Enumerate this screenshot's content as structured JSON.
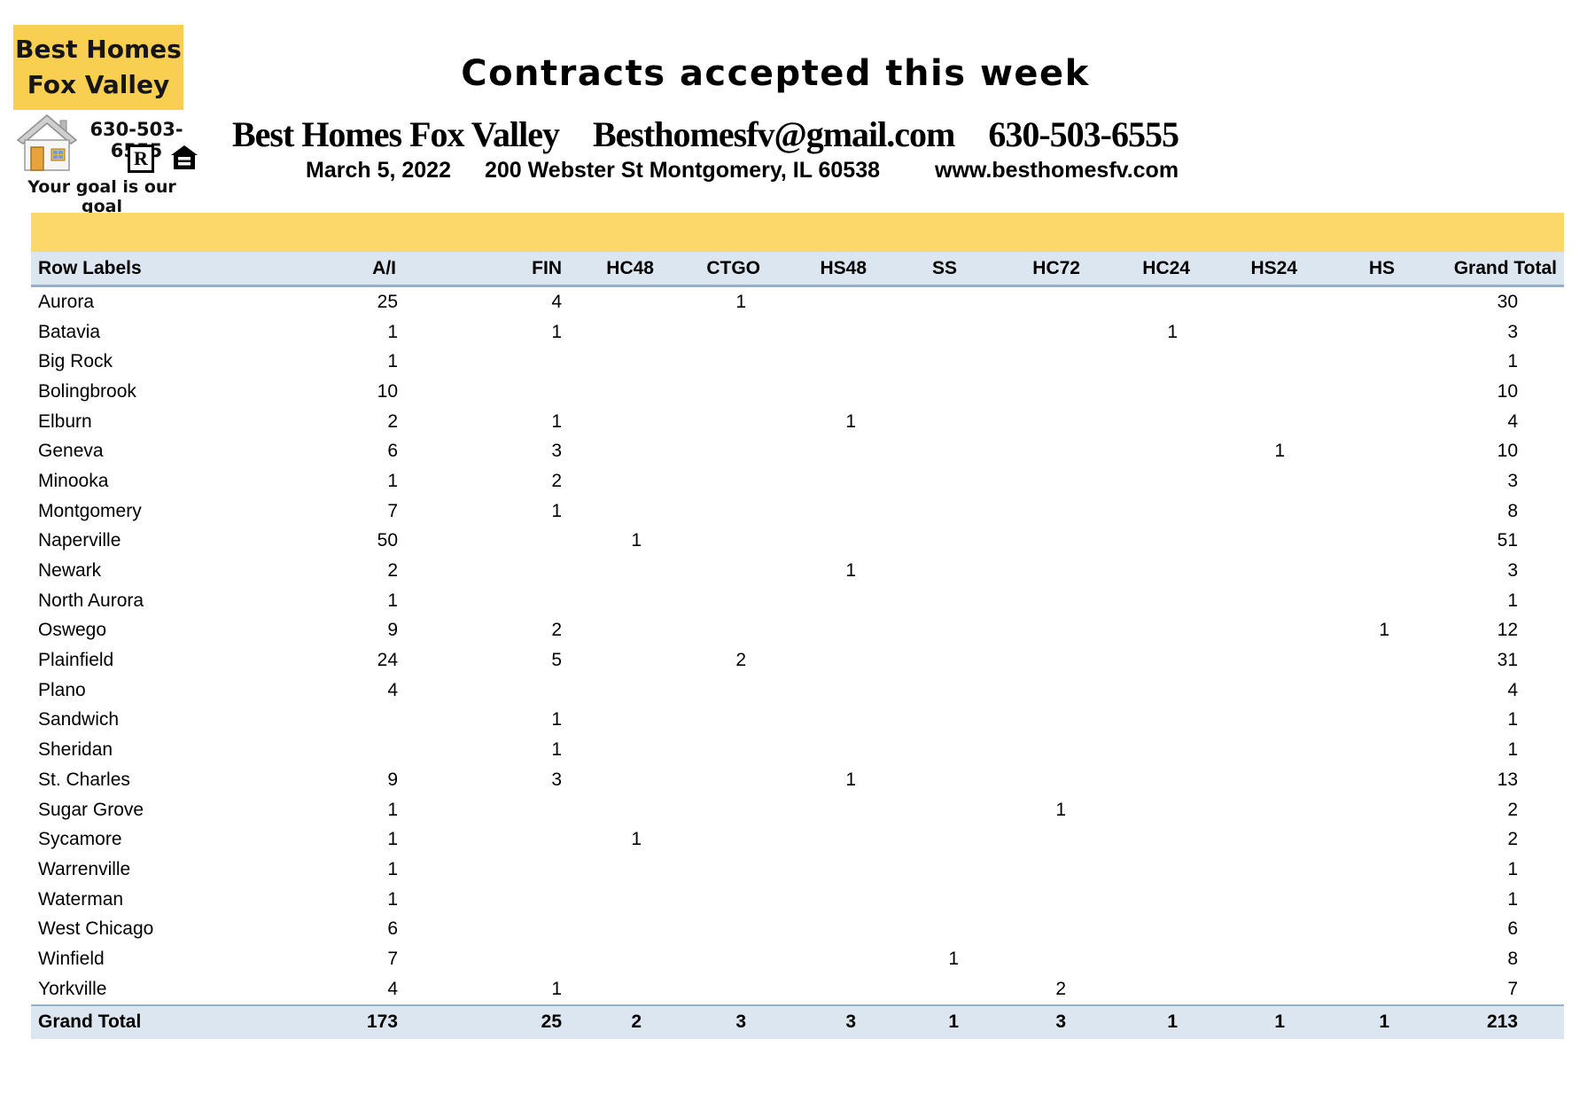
{
  "logo": {
    "line1": "Best Homes",
    "line2": "Fox Valley",
    "phone": "630-503-6555",
    "tagline": "Your goal is our goal",
    "icons": [
      "house-icon",
      "realtor-icon",
      "equal-housing-icon"
    ]
  },
  "header": {
    "title": "Contracts accepted this week",
    "company": "Best Homes Fox Valley",
    "email": "Besthomesfv@gmail.com",
    "phone": "630-503-6555",
    "date": "March 5, 2022",
    "address": "200 Webster St Montgomery, IL 60538",
    "website": "www.besthomesfv.com"
  },
  "colors": {
    "logo_yellow": "#F9CF52",
    "band_yellow": "#FBD869",
    "header_blue": "#DCE6F1",
    "border_blue": "#95AFC9"
  },
  "table": {
    "columns": [
      "Row Labels",
      "A/I",
      "FIN",
      "HC48",
      "CTGO",
      "HS48",
      "SS",
      "HC72",
      "HC24",
      "HS24",
      "HS",
      "Grand Total"
    ],
    "rows": [
      {
        "label": "Aurora",
        "values": [
          "25",
          "4",
          "",
          "1",
          "",
          "",
          "",
          "",
          "",
          "",
          "30"
        ]
      },
      {
        "label": "Batavia",
        "values": [
          "1",
          "1",
          "",
          "",
          "",
          "",
          "",
          "1",
          "",
          "",
          "3"
        ]
      },
      {
        "label": "Big Rock",
        "values": [
          "1",
          "",
          "",
          "",
          "",
          "",
          "",
          "",
          "",
          "",
          "1"
        ]
      },
      {
        "label": "Bolingbrook",
        "values": [
          "10",
          "",
          "",
          "",
          "",
          "",
          "",
          "",
          "",
          "",
          "10"
        ]
      },
      {
        "label": "Elburn",
        "values": [
          "2",
          "1",
          "",
          "",
          "1",
          "",
          "",
          "",
          "",
          "",
          "4"
        ]
      },
      {
        "label": "Geneva",
        "values": [
          "6",
          "3",
          "",
          "",
          "",
          "",
          "",
          "",
          "1",
          "",
          "10"
        ]
      },
      {
        "label": "Minooka",
        "values": [
          "1",
          "2",
          "",
          "",
          "",
          "",
          "",
          "",
          "",
          "",
          "3"
        ]
      },
      {
        "label": "Montgomery",
        "values": [
          "7",
          "1",
          "",
          "",
          "",
          "",
          "",
          "",
          "",
          "",
          "8"
        ]
      },
      {
        "label": "Naperville",
        "values": [
          "50",
          "",
          "1",
          "",
          "",
          "",
          "",
          "",
          "",
          "",
          "51"
        ]
      },
      {
        "label": "Newark",
        "values": [
          "2",
          "",
          "",
          "",
          "1",
          "",
          "",
          "",
          "",
          "",
          "3"
        ]
      },
      {
        "label": "North Aurora",
        "values": [
          "1",
          "",
          "",
          "",
          "",
          "",
          "",
          "",
          "",
          "",
          "1"
        ]
      },
      {
        "label": "Oswego",
        "values": [
          "9",
          "2",
          "",
          "",
          "",
          "",
          "",
          "",
          "",
          "1",
          "12"
        ]
      },
      {
        "label": "Plainfield",
        "values": [
          "24",
          "5",
          "",
          "2",
          "",
          "",
          "",
          "",
          "",
          "",
          "31"
        ]
      },
      {
        "label": "Plano",
        "values": [
          "4",
          "",
          "",
          "",
          "",
          "",
          "",
          "",
          "",
          "",
          "4"
        ]
      },
      {
        "label": "Sandwich",
        "values": [
          "",
          "1",
          "",
          "",
          "",
          "",
          "",
          "",
          "",
          "",
          "1"
        ]
      },
      {
        "label": "Sheridan",
        "values": [
          "",
          "1",
          "",
          "",
          "",
          "",
          "",
          "",
          "",
          "",
          "1"
        ]
      },
      {
        "label": "St. Charles",
        "values": [
          "9",
          "3",
          "",
          "",
          "1",
          "",
          "",
          "",
          "",
          "",
          "13"
        ]
      },
      {
        "label": "Sugar Grove",
        "values": [
          "1",
          "",
          "",
          "",
          "",
          "",
          "1",
          "",
          "",
          "",
          "2"
        ]
      },
      {
        "label": "Sycamore",
        "values": [
          "1",
          "",
          "1",
          "",
          "",
          "",
          "",
          "",
          "",
          "",
          "2"
        ]
      },
      {
        "label": "Warrenville",
        "values": [
          "1",
          "",
          "",
          "",
          "",
          "",
          "",
          "",
          "",
          "",
          "1"
        ]
      },
      {
        "label": "Waterman",
        "values": [
          "1",
          "",
          "",
          "",
          "",
          "",
          "",
          "",
          "",
          "",
          "1"
        ]
      },
      {
        "label": "West Chicago",
        "values": [
          "6",
          "",
          "",
          "",
          "",
          "",
          "",
          "",
          "",
          "",
          "6"
        ]
      },
      {
        "label": "Winfield",
        "values": [
          "7",
          "",
          "",
          "",
          "",
          "1",
          "",
          "",
          "",
          "",
          "8"
        ]
      },
      {
        "label": "Yorkville",
        "values": [
          "4",
          "1",
          "",
          "",
          "",
          "",
          "2",
          "",
          "",
          "",
          "7"
        ]
      }
    ],
    "grand_total": {
      "label": "Grand Total",
      "values": [
        "173",
        "25",
        "2",
        "3",
        "3",
        "1",
        "3",
        "1",
        "1",
        "1",
        "213"
      ]
    }
  }
}
